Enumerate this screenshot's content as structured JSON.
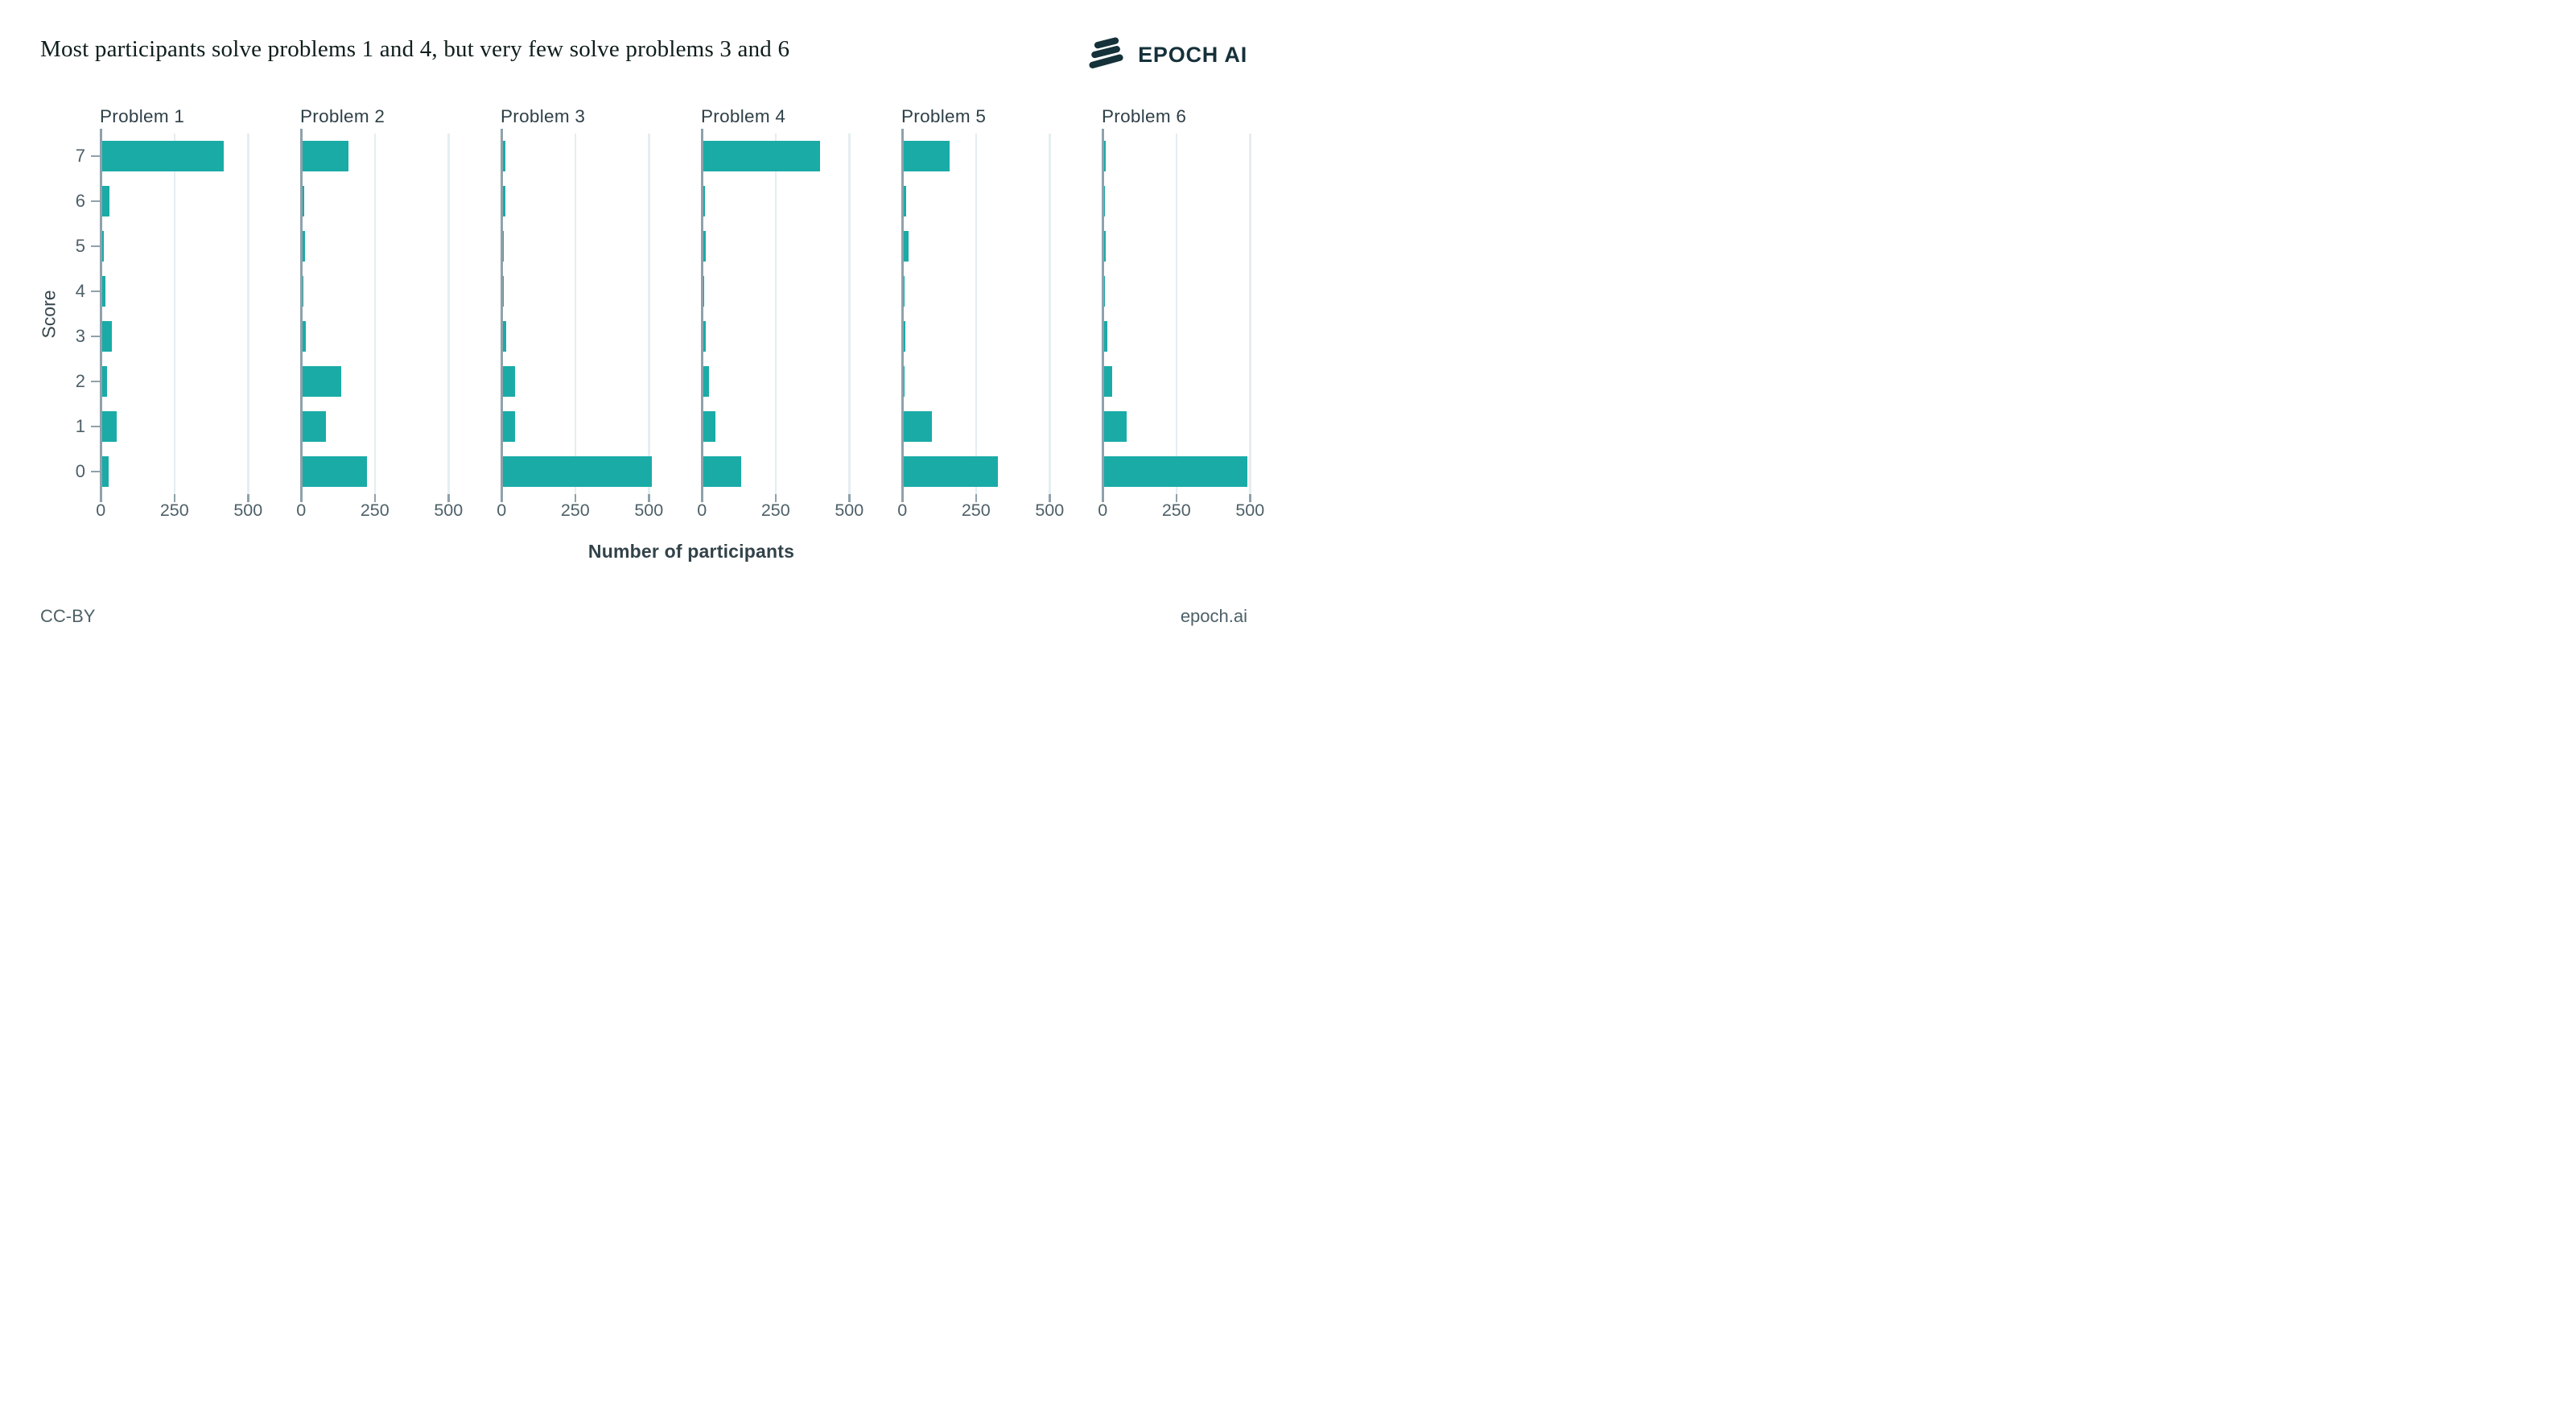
{
  "title": "Most participants solve problems 1 and 4, but very few solve problems 3 and 6",
  "logo": {
    "name": "EPOCH AI"
  },
  "footer": {
    "license": "CC-BY",
    "site": "epoch.ai"
  },
  "colors": {
    "bar": "#1aaba7",
    "axis": "#8fa1ab",
    "gridline": "#e4eef1",
    "title_text": "#0f1e1c",
    "tick_text": "#4e6068",
    "panel_title_text": "#2f4047",
    "logo_text": "#15313a"
  },
  "chart_data": {
    "type": "bar",
    "orientation": "horizontal",
    "title": "Most participants solve problems 1 and 4, but very few solve problems 3 and 6",
    "xlabel": "Number of participants",
    "ylabel": "Score",
    "x_ticks": [
      0,
      250,
      500
    ],
    "xlim": [
      0,
      615
    ],
    "grid": "vertical gridlines at 250 and 500, ticks on first facet only",
    "categories": [
      "7",
      "6",
      "5",
      "4",
      "3",
      "2",
      "1",
      "0"
    ],
    "facets": [
      {
        "label": "Problem 1",
        "values": [
          413,
          27,
          8,
          11,
          33,
          19,
          51,
          24
        ]
      },
      {
        "label": "Problem 2",
        "values": [
          158,
          8,
          9,
          5,
          11,
          132,
          80,
          219
        ]
      },
      {
        "label": "Problem 3",
        "values": [
          10,
          9,
          4,
          4,
          11,
          41,
          41,
          506
        ]
      },
      {
        "label": "Problem 4",
        "values": [
          397,
          8,
          9,
          5,
          10,
          21,
          41,
          130
        ]
      },
      {
        "label": "Problem 5",
        "values": [
          156,
          10,
          19,
          1,
          7,
          3,
          98,
          320
        ]
      },
      {
        "label": "Problem 6",
        "values": [
          6,
          1,
          8,
          4,
          11,
          28,
          77,
          487
        ]
      }
    ]
  }
}
